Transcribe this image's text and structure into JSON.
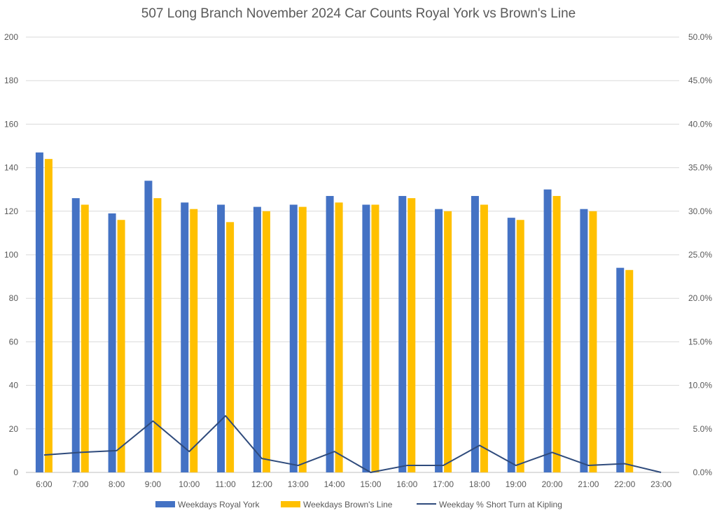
{
  "chart_data": {
    "type": "bar",
    "title": "507 Long Branch November 2024 Car Counts Royal York vs Brown's Line",
    "categories": [
      "6:00",
      "7:00",
      "8:00",
      "9:00",
      "10:00",
      "11:00",
      "12:00",
      "13:00",
      "14:00",
      "15:00",
      "16:00",
      "17:00",
      "18:00",
      "19:00",
      "20:00",
      "21:00",
      "22:00",
      "23:00"
    ],
    "series": [
      {
        "name": "Weekdays Royal York",
        "type": "bar",
        "axis": "left",
        "color": "#4472C4",
        "values": [
          147,
          126,
          119,
          134,
          124,
          123,
          122,
          123,
          127,
          123,
          127,
          121,
          127,
          117,
          130,
          121,
          94,
          null
        ]
      },
      {
        "name": "Weekdays Brown's Line",
        "type": "bar",
        "axis": "left",
        "color": "#FFC000",
        "values": [
          144,
          123,
          116,
          126,
          121,
          115,
          120,
          122,
          124,
          123,
          126,
          120,
          123,
          116,
          127,
          120,
          93,
          null
        ]
      },
      {
        "name": "Weekday % Short Turn at Kipling",
        "type": "line",
        "axis": "right",
        "color": "#2F4B7C",
        "values": [
          0.02,
          0.023,
          0.025,
          0.059,
          0.024,
          0.065,
          0.016,
          0.008,
          0.024,
          0.0,
          0.008,
          0.008,
          0.031,
          0.008,
          0.023,
          0.008,
          0.01,
          0.0
        ]
      }
    ],
    "y_left": {
      "min": 0,
      "max": 200,
      "step": 20,
      "tick_labels": [
        "0",
        "20",
        "40",
        "60",
        "80",
        "100",
        "120",
        "140",
        "160",
        "180",
        "200"
      ]
    },
    "y_right": {
      "min": 0,
      "max": 0.5,
      "step": 0.05,
      "tick_labels": [
        "0.0%",
        "5.0%",
        "10.0%",
        "15.0%",
        "20.0%",
        "25.0%",
        "30.0%",
        "35.0%",
        "40.0%",
        "45.0%",
        "50.0%"
      ]
    },
    "grid": true,
    "legend_position": "bottom"
  }
}
